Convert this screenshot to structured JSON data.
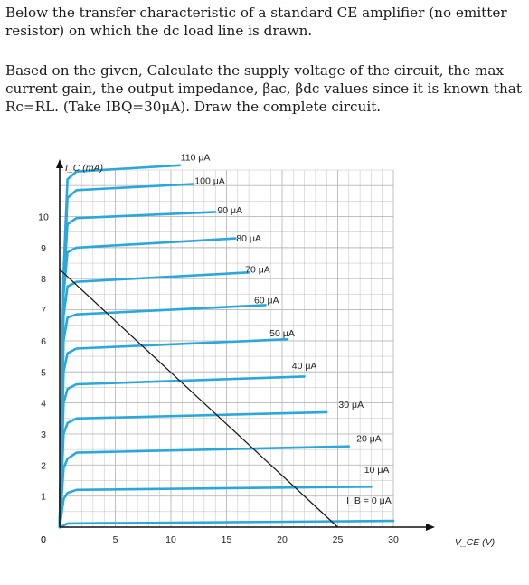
{
  "problem": {
    "paragraph1": "Below the transfer characteristic of a standard CE amplifier (no emitter resistor) on which the dc load line is drawn.",
    "paragraph2": "Based on the given, Calculate the supply voltage of the circuit, the max current gain, the output impedance, βac, βdc values since it is known that Rc=RL. (Take IBQ=30μA). Draw the complete circuit."
  },
  "chart_data": {
    "type": "line",
    "ylabel": "I_C (mA)",
    "xlabel": "V_CE (V)",
    "xlim": [
      0,
      30
    ],
    "ylim": [
      0,
      11.5
    ],
    "x_ticks": [
      0,
      5,
      10,
      15,
      20,
      25,
      30
    ],
    "x_tick_labels": [
      "0",
      "5",
      "10",
      "15",
      "20",
      "25",
      "30"
    ],
    "y_ticks": [
      0,
      1,
      2,
      3,
      4,
      5,
      6,
      7,
      8,
      9,
      10
    ],
    "y_tick_labels": [
      "0",
      "1",
      "2",
      "3",
      "4",
      "5",
      "6",
      "7",
      "8",
      "9",
      "10"
    ],
    "grid": true,
    "series": [
      {
        "name": "I_B = 0 μA",
        "label": "I_B = 0 μA",
        "label_at": [
          27.8,
          0.75
        ],
        "x": [
          0,
          0.35,
          0.7,
          30
        ],
        "y": [
          0,
          0.05,
          0.12,
          0.2
        ]
      },
      {
        "name": "10 μA",
        "label": "10 μA",
        "label_at": [
          28.5,
          1.75
        ],
        "x": [
          0,
          0.35,
          0.7,
          1.5,
          28
        ],
        "y": [
          0,
          0.9,
          1.1,
          1.2,
          1.3
        ]
      },
      {
        "name": "20 μA",
        "label": "20 μA",
        "label_at": [
          27.8,
          2.75
        ],
        "x": [
          0,
          0.35,
          0.7,
          1.5,
          26
        ],
        "y": [
          0,
          1.9,
          2.2,
          2.4,
          2.6
        ]
      },
      {
        "name": "30 μA",
        "label": "30 μA",
        "label_at": [
          26.2,
          3.85
        ],
        "x": [
          0,
          0.35,
          0.7,
          1.5,
          24
        ],
        "y": [
          0,
          3.0,
          3.35,
          3.5,
          3.7
        ]
      },
      {
        "name": "40 μA",
        "label": "40 μA",
        "label_at": [
          22.0,
          5.1
        ],
        "x": [
          0,
          0.35,
          0.7,
          1.5,
          22
        ],
        "y": [
          0,
          4.0,
          4.45,
          4.6,
          4.85
        ]
      },
      {
        "name": "50 μA",
        "label": "50 μA",
        "label_at": [
          20.0,
          6.15
        ],
        "x": [
          0,
          0.35,
          0.7,
          1.5,
          20.5
        ],
        "y": [
          0,
          5.0,
          5.6,
          5.75,
          6.05
        ]
      },
      {
        "name": "60 μA",
        "label": "60 μA",
        "label_at": [
          18.6,
          7.2
        ],
        "x": [
          0,
          0.35,
          0.7,
          1.5,
          18.5
        ],
        "y": [
          0,
          6.0,
          6.75,
          6.85,
          7.15
        ]
      },
      {
        "name": "70 μA",
        "label": "70 μA",
        "label_at": [
          17.8,
          8.2
        ],
        "x": [
          0,
          0.35,
          0.7,
          1.5,
          17
        ],
        "y": [
          0,
          6.8,
          7.75,
          7.9,
          8.2
        ]
      },
      {
        "name": "80 μA",
        "label": "80 μA",
        "label_at": [
          17.0,
          9.2
        ],
        "x": [
          0,
          0.35,
          0.7,
          1.5,
          15.8
        ],
        "y": [
          0,
          7.5,
          8.85,
          9.0,
          9.3
        ]
      },
      {
        "name": "90 μA",
        "label": "90 μA",
        "label_at": [
          15.3,
          10.1
        ],
        "x": [
          0,
          0.35,
          0.7,
          1.5,
          14
        ],
        "y": [
          0,
          7.8,
          9.75,
          9.95,
          10.15
        ]
      },
      {
        "name": "100 μA",
        "label": "100 μA",
        "label_at": [
          13.5,
          11.05
        ],
        "x": [
          0,
          0.35,
          0.7,
          1.5,
          12
        ],
        "y": [
          0,
          8.0,
          10.6,
          10.85,
          11.05
        ]
      },
      {
        "name": "110 μA",
        "label": "110 μA",
        "label_at": [
          12.2,
          11.8
        ],
        "x": [
          0,
          0.35,
          0.7,
          1.5,
          10.8
        ],
        "y": [
          0,
          8.2,
          11.2,
          11.45,
          11.65
        ]
      }
    ],
    "load_line": {
      "x": [
        0,
        25
      ],
      "y": [
        8.3,
        0
      ]
    },
    "colors": {
      "curve": "#2ba7dc",
      "load_line": "#111111",
      "grid": "#b8b8b8",
      "background": "#ffffff"
    }
  }
}
